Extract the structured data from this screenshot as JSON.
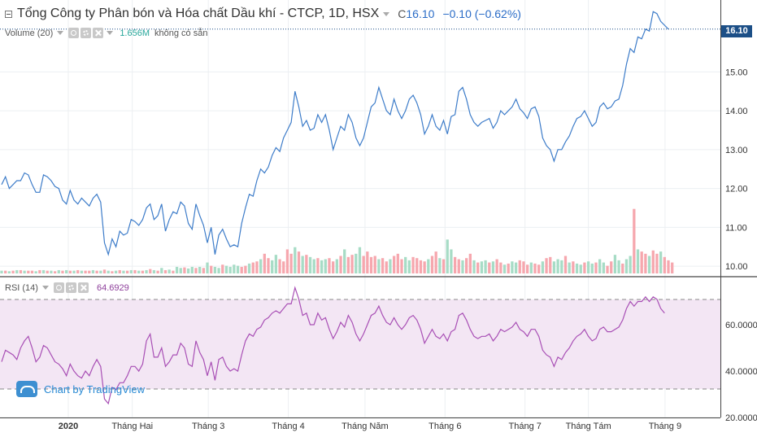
{
  "header": {
    "title": "Tổng Công ty Phân bón và Hóa chất Dầu khí - CTCP, 1D, HSX",
    "close_prefix": "C",
    "close_value": "16.10",
    "change": "−0.10 (−0.62%)"
  },
  "volume_legend": {
    "label": "Volume (20)",
    "value": "1.656M",
    "unavailable": "không có sẵn"
  },
  "rsi_legend": {
    "label": "RSI (14)",
    "value": "64.6929"
  },
  "price_tag": "16.10",
  "watermark": "Chart by TradingView",
  "colors": {
    "price_line": "#3d7cc9",
    "rsi_line": "#a84fb5",
    "rsi_band": "#f3e6f4",
    "volume_up": "#a7dcc6",
    "volume_down": "#f6a7ae",
    "price_tag_bg": "#1c4f87"
  },
  "chart_data": [
    {
      "type": "line",
      "ylim": [
        9.75,
        16.85
      ],
      "y_ticks": [
        "10.00",
        "11.00",
        "12.00",
        "13.00",
        "14.00",
        "15.00"
      ],
      "x_ticks": [
        "2020",
        "Tháng Hai",
        "Tháng 3",
        "Tháng 4",
        "Tháng Năm",
        "Tháng 6",
        "Tháng 7",
        "Tháng Tám",
        "Tháng 9"
      ],
      "values": [
        12.1,
        12.3,
        12.0,
        12.1,
        12.2,
        12.2,
        12.4,
        12.35,
        12.1,
        11.9,
        11.9,
        12.35,
        12.3,
        12.2,
        12.05,
        12.0,
        11.7,
        11.6,
        11.95,
        11.7,
        11.6,
        11.75,
        11.65,
        11.55,
        11.75,
        11.85,
        11.65,
        10.6,
        10.3,
        10.7,
        10.5,
        10.9,
        10.8,
        10.85,
        11.2,
        11.15,
        11.05,
        11.2,
        11.5,
        11.6,
        11.2,
        11.3,
        11.6,
        10.9,
        11.2,
        11.4,
        11.35,
        11.65,
        11.55,
        11.1,
        10.95,
        11.6,
        11.3,
        11.05,
        10.6,
        11.0,
        10.3,
        10.8,
        10.95,
        10.7,
        10.5,
        10.55,
        10.5,
        11.1,
        11.5,
        11.85,
        11.8,
        12.2,
        12.5,
        12.4,
        12.55,
        12.85,
        13.05,
        12.95,
        13.3,
        13.5,
        13.7,
        14.5,
        14.1,
        13.6,
        13.75,
        13.5,
        13.55,
        13.9,
        13.7,
        13.9,
        13.5,
        13.0,
        13.3,
        13.6,
        13.5,
        13.9,
        13.7,
        13.3,
        13.1,
        13.3,
        13.7,
        14.1,
        14.2,
        14.6,
        14.3,
        14.0,
        13.9,
        14.3,
        14.0,
        13.8,
        14.0,
        14.3,
        14.4,
        14.2,
        13.9,
        13.4,
        13.6,
        13.9,
        13.6,
        13.5,
        13.75,
        13.4,
        13.85,
        13.9,
        14.5,
        14.6,
        14.3,
        13.9,
        13.7,
        13.6,
        13.7,
        13.75,
        13.8,
        13.55,
        13.7,
        14.0,
        13.9,
        14.0,
        14.1,
        14.3,
        14.05,
        13.95,
        13.8,
        14.05,
        14.1,
        13.85,
        13.3,
        13.1,
        13.0,
        12.7,
        13.0,
        13.0,
        13.2,
        13.35,
        13.6,
        13.8,
        13.85,
        14.0,
        13.8,
        13.6,
        13.7,
        14.1,
        14.2,
        14.05,
        14.1,
        14.25,
        14.3,
        14.65,
        15.2,
        15.6,
        15.5,
        15.9,
        15.85,
        16.1,
        16.05,
        16.55,
        16.5,
        16.3,
        16.2,
        16.1
      ],
      "volume_values": [
        0.05,
        0.05,
        0.04,
        0.05,
        0.06,
        0.06,
        0.05,
        0.05,
        0.05,
        0.04,
        0.06,
        0.06,
        0.05,
        0.05,
        0.04,
        0.06,
        0.05,
        0.06,
        0.05,
        0.05,
        0.06,
        0.05,
        0.05,
        0.05,
        0.06,
        0.05,
        0.05,
        0.07,
        0.05,
        0.04,
        0.05,
        0.06,
        0.05,
        0.05,
        0.06,
        0.06,
        0.05,
        0.05,
        0.06,
        0.08,
        0.06,
        0.05,
        0.1,
        0.06,
        0.07,
        0.05,
        0.12,
        0.1,
        0.11,
        0.09,
        0.12,
        0.1,
        0.12,
        0.1,
        0.2,
        0.14,
        0.12,
        0.1,
        0.16,
        0.14,
        0.12,
        0.16,
        0.14,
        0.12,
        0.14,
        0.18,
        0.2,
        0.22,
        0.26,
        0.36,
        0.28,
        0.24,
        0.34,
        0.26,
        0.22,
        0.44,
        0.36,
        0.48,
        0.4,
        0.32,
        0.34,
        0.3,
        0.26,
        0.28,
        0.24,
        0.26,
        0.28,
        0.22,
        0.26,
        0.32,
        0.44,
        0.3,
        0.34,
        0.36,
        0.48,
        0.32,
        0.4,
        0.3,
        0.32,
        0.26,
        0.28,
        0.22,
        0.26,
        0.32,
        0.36,
        0.26,
        0.3,
        0.24,
        0.3,
        0.28,
        0.24,
        0.22,
        0.26,
        0.32,
        0.4,
        0.28,
        0.26,
        0.62,
        0.44,
        0.3,
        0.26,
        0.24,
        0.28,
        0.36,
        0.24,
        0.2,
        0.22,
        0.24,
        0.2,
        0.22,
        0.26,
        0.2,
        0.16,
        0.18,
        0.22,
        0.2,
        0.24,
        0.22,
        0.16,
        0.2,
        0.18,
        0.16,
        0.22,
        0.28,
        0.3,
        0.22,
        0.26,
        0.24,
        0.32,
        0.2,
        0.22,
        0.18,
        0.16,
        0.2,
        0.22,
        0.18,
        0.2,
        0.26,
        0.2,
        0.14,
        0.22,
        0.34,
        0.24,
        0.18,
        0.26,
        0.32,
        1.18,
        0.44,
        0.4,
        0.36,
        0.32,
        0.42,
        0.36,
        0.4,
        0.3,
        0.24,
        0.2
      ],
      "volume_up": [
        1,
        0,
        1,
        0,
        1,
        0,
        1,
        0,
        0,
        1,
        0,
        1,
        0,
        1,
        0,
        1,
        0,
        1,
        0,
        1,
        0,
        1,
        0,
        0,
        1,
        0,
        1,
        0,
        1,
        0,
        1,
        0,
        1,
        0,
        1,
        0,
        1,
        0,
        1,
        0,
        1,
        0,
        1,
        0,
        1,
        0,
        1,
        1,
        0,
        1,
        1,
        0,
        1,
        0,
        1,
        0,
        1,
        1,
        0,
        1,
        1,
        1,
        1,
        0,
        0,
        1,
        0,
        0,
        1,
        0,
        0,
        1,
        1,
        0,
        0,
        0,
        0,
        1,
        0,
        1,
        0,
        1,
        1,
        0,
        1,
        1,
        0,
        0,
        1,
        0,
        1,
        0,
        0,
        1,
        1,
        0,
        0,
        0,
        0,
        1,
        0,
        0,
        1,
        0,
        0,
        0,
        1,
        1,
        0,
        0,
        0,
        0,
        1,
        0,
        0,
        1,
        0,
        1,
        1,
        0,
        0,
        1,
        0,
        0,
        1,
        0,
        1,
        1,
        0,
        1,
        0,
        0,
        1,
        0,
        1,
        1,
        0,
        0,
        0,
        1,
        0,
        0,
        1,
        0,
        0,
        1,
        1,
        1,
        0,
        1,
        0,
        1,
        1,
        0,
        1,
        1,
        0,
        1,
        1,
        0,
        0,
        1,
        1,
        0,
        1,
        1,
        0,
        1,
        0,
        0,
        1,
        0,
        0,
        1,
        0,
        0
      ],
      "volume_scale_max": 1.25
    },
    {
      "type": "line",
      "ylim": [
        20,
        80
      ],
      "y_ticks": [
        "20.0000",
        "40.0000",
        "60.0000"
      ],
      "band": [
        30,
        70
      ],
      "values": [
        44,
        49,
        48,
        47,
        45,
        50,
        53,
        55,
        50,
        44,
        46,
        51,
        50,
        47,
        44,
        43,
        41,
        38,
        43,
        40,
        38,
        37,
        40,
        38,
        42,
        45,
        42,
        28,
        26,
        33,
        32,
        35,
        35,
        38,
        42,
        42,
        40,
        43,
        53,
        56,
        46,
        46,
        50,
        42,
        44,
        47,
        47,
        52,
        50,
        43,
        42,
        53,
        48,
        45,
        38,
        44,
        36,
        45,
        46,
        42,
        40,
        41,
        40,
        47,
        53,
        56,
        55,
        58,
        59,
        62,
        63,
        65,
        66,
        65,
        67,
        69,
        69,
        76,
        71,
        64,
        65,
        60,
        60,
        65,
        62,
        63,
        58,
        54,
        57,
        61,
        59,
        64,
        61,
        56,
        53,
        56,
        60,
        64,
        65,
        68,
        64,
        61,
        60,
        63,
        60,
        58,
        60,
        63,
        64,
        62,
        58,
        52,
        55,
        58,
        55,
        54,
        56,
        53,
        57,
        58,
        64,
        65,
        62,
        58,
        55,
        54,
        55,
        55,
        56,
        53,
        55,
        58,
        57,
        58,
        59,
        61,
        58,
        57,
        55,
        58,
        58,
        55,
        49,
        47,
        46,
        42,
        46,
        45,
        48,
        50,
        53,
        55,
        56,
        58,
        55,
        53,
        54,
        58,
        59,
        57,
        57,
        58,
        59,
        62,
        67,
        70,
        68,
        70,
        70,
        72,
        70,
        72,
        71,
        67,
        65
      ]
    }
  ]
}
